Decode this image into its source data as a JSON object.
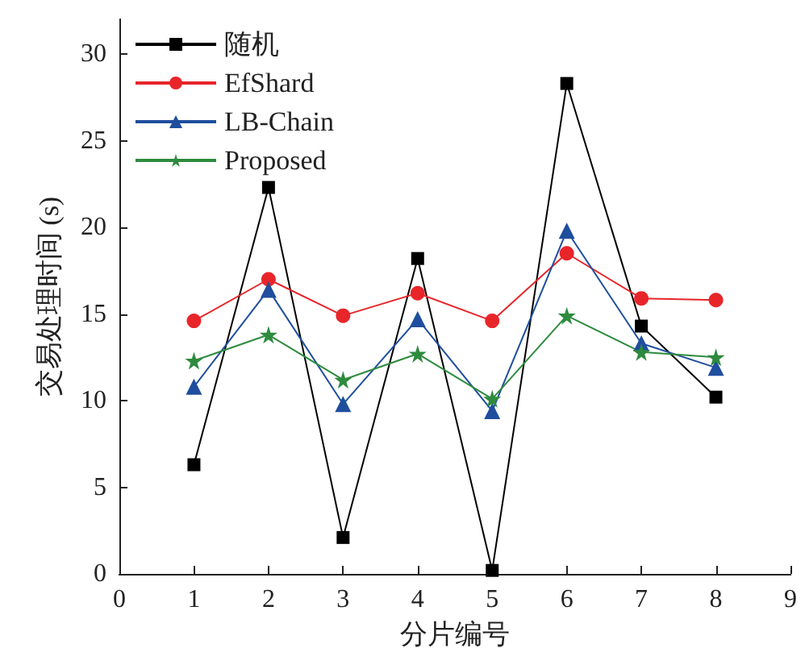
{
  "chart_data": {
    "type": "line",
    "xlabel": "分片编号",
    "ylabel": "交易处理时间 (s)",
    "x": [
      1,
      2,
      3,
      4,
      5,
      6,
      7,
      8
    ],
    "xlim": [
      0,
      9
    ],
    "xticks": [
      0,
      1,
      2,
      3,
      4,
      5,
      6,
      7,
      8,
      9
    ],
    "ylim": [
      0,
      32
    ],
    "yticks": [
      0,
      5,
      10,
      15,
      20,
      25,
      30
    ],
    "grid": false,
    "legend": "top left",
    "series": [
      {
        "name": "随机",
        "color": "#000000",
        "marker": "square",
        "values": [
          6.3,
          22.3,
          2.1,
          18.2,
          0.2,
          28.3,
          14.3,
          10.2
        ]
      },
      {
        "name": "EfShard",
        "color": "#e8262a",
        "marker": "circle",
        "values": [
          14.6,
          17.0,
          14.9,
          16.2,
          14.6,
          18.5,
          15.9,
          15.8
        ]
      },
      {
        "name": "LB-Chain",
        "color": "#1f4e9e",
        "marker": "triangle",
        "values": [
          10.8,
          16.4,
          9.8,
          14.7,
          9.4,
          19.8,
          13.3,
          11.9
        ]
      },
      {
        "name": "Proposed",
        "color": "#2e8b3e",
        "marker": "star",
        "values": [
          12.3,
          13.8,
          11.2,
          12.7,
          10.1,
          14.9,
          12.8,
          12.5
        ]
      }
    ]
  }
}
